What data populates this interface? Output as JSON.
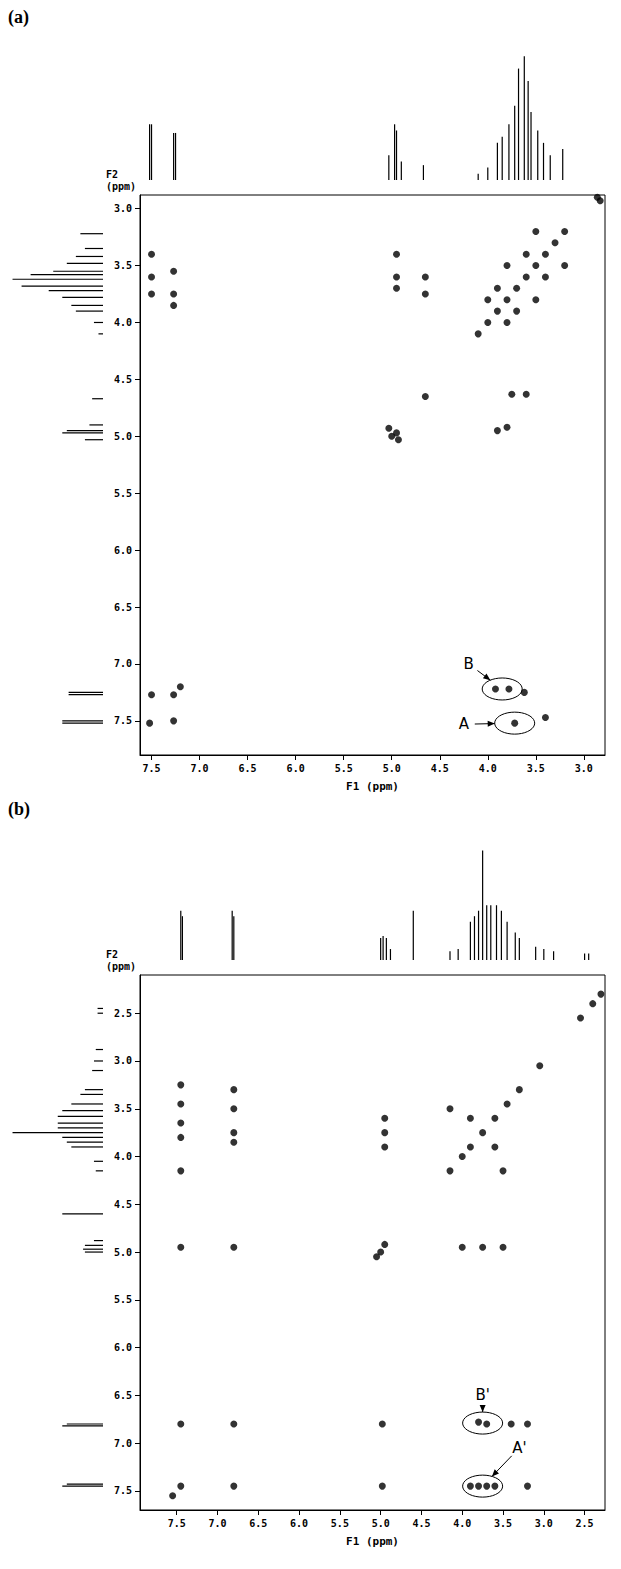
{
  "chart_data": [
    {
      "type": "scatter",
      "title": "(a)",
      "x_label": "F1 (ppm)",
      "y_label": "F2 (ppm)",
      "xlim": [
        7.62,
        2.78
      ],
      "ylim": [
        7.8,
        2.88
      ],
      "xticks": [
        7.5,
        {
          "value": 7,
          "label": "7.0"
        },
        6.5,
        {
          "value": 6,
          "label": "6.0"
        },
        5.5,
        {
          "value": 5,
          "label": "5.0"
        },
        4.5,
        {
          "value": 4,
          "label": "4.0"
        },
        3.5,
        {
          "value": 3,
          "label": "3.0"
        }
      ],
      "yticks": [
        {
          "value": 3,
          "label": "3.0"
        },
        3.5,
        {
          "value": 4,
          "label": "4.0"
        },
        4.5,
        {
          "value": 5,
          "label": "5.0"
        },
        5.5,
        {
          "value": 6,
          "label": "6.0"
        },
        6.5,
        {
          "value": 7,
          "label": "7.0"
        },
        7.5
      ],
      "grid": false,
      "color": "#000000",
      "marker": "circle",
      "x": [
        4.1,
        4.0,
        3.9,
        3.8,
        3.7,
        3.6,
        3.5,
        3.4,
        3.3,
        3.2,
        3.9,
        3.7,
        3.8,
        3.5,
        3.6,
        3.4,
        4.0,
        3.8,
        3.5,
        3.2,
        7.52,
        7.27,
        7.5,
        7.27,
        7.2,
        5.0,
        4.95,
        5.03,
        4.93,
        4.65,
        4.95,
        4.95,
        4.95,
        4.65,
        4.65,
        3.6,
        3.75,
        3.8,
        3.9,
        7.5,
        7.5,
        7.5,
        7.27,
        7.27,
        7.27,
        3.72,
        3.92,
        3.78,
        3.62,
        3.4,
        2.83,
        2.86
      ],
      "values": [
        4.1,
        4.0,
        3.9,
        3.8,
        3.7,
        3.6,
        3.5,
        3.4,
        3.3,
        3.2,
        3.7,
        3.9,
        3.5,
        3.8,
        3.4,
        3.6,
        3.8,
        4.0,
        3.2,
        3.5,
        7.52,
        7.27,
        7.27,
        7.5,
        7.2,
        5.0,
        4.97,
        4.93,
        5.03,
        4.65,
        3.4,
        3.6,
        3.7,
        3.6,
        3.75,
        4.63,
        4.63,
        4.92,
        4.95,
        3.4,
        3.6,
        3.75,
        3.55,
        3.75,
        3.85,
        7.52,
        7.22,
        7.22,
        7.25,
        7.47,
        2.93,
        2.9
      ],
      "projection": {
        "x": [
          7.52,
          7.5,
          7.27,
          7.25,
          5.03,
          4.97,
          4.95,
          4.9,
          4.67,
          4.1,
          4.0,
          3.9,
          3.85,
          3.78,
          3.72,
          3.68,
          3.62,
          3.58,
          3.55,
          3.48,
          3.42,
          3.35,
          3.22
        ],
        "values": [
          0.45,
          0.45,
          0.38,
          0.38,
          0.2,
          0.45,
          0.4,
          0.15,
          0.12,
          0.05,
          0.1,
          0.3,
          0.35,
          0.45,
          0.6,
          0.9,
          1.0,
          0.8,
          0.55,
          0.4,
          0.3,
          0.2,
          0.25
        ]
      },
      "annotations": [
        {
          "text": "B",
          "x": 4.2,
          "y": 7.0,
          "target": [
            3.85,
            7.22
          ]
        },
        {
          "text": "A",
          "x": 4.25,
          "y": 7.53,
          "target": [
            3.72,
            7.52
          ]
        }
      ]
    },
    {
      "type": "scatter",
      "title": "(b)",
      "x_label": "F1 (ppm)",
      "y_label": "F2 (ppm)",
      "xlim": [
        7.95,
        2.25
      ],
      "ylim": [
        7.7,
        2.1
      ],
      "xticks": [
        7.5,
        {
          "value": 7,
          "label": "7.0"
        },
        6.5,
        {
          "value": 6,
          "label": "6.0"
        },
        5.5,
        {
          "value": 5,
          "label": "5.0"
        },
        4.5,
        {
          "value": 4,
          "label": "4.0"
        },
        3.5,
        {
          "value": 3,
          "label": "3.0"
        },
        2.5
      ],
      "yticks": [
        2.5,
        {
          "value": 3,
          "label": "3.0"
        },
        3.5,
        {
          "value": 4,
          "label": "4.0"
        },
        4.5,
        {
          "value": 5,
          "label": "5.0"
        },
        5.5,
        {
          "value": 6,
          "label": "6.0"
        },
        6.5,
        {
          "value": 7,
          "label": "7.0"
        },
        7.5
      ],
      "grid": false,
      "color": "#000000",
      "marker": "circle",
      "x": [
        4.15,
        4.0,
        3.9,
        3.75,
        3.6,
        3.45,
        3.3,
        3.05,
        2.55,
        2.3,
        2.4,
        3.9,
        3.6,
        4.15,
        3.5,
        7.45,
        6.8,
        7.45,
        6.8,
        7.55,
        5.0,
        4.95,
        5.05,
        4.95,
        4.95,
        4.95,
        3.5,
        3.75,
        4.0,
        7.45,
        7.45,
        7.45,
        7.45,
        7.45,
        7.45,
        6.8,
        6.8,
        6.8,
        6.8,
        6.8,
        4.98,
        3.9,
        3.8,
        3.7,
        3.6,
        3.2,
        4.98,
        3.8,
        3.7,
        3.4,
        3.2
      ],
      "values": [
        4.15,
        4.0,
        3.9,
        3.75,
        3.6,
        3.45,
        3.3,
        3.05,
        2.55,
        2.3,
        2.4,
        3.6,
        3.9,
        3.5,
        4.15,
        7.45,
        6.8,
        6.8,
        7.45,
        7.55,
        5.0,
        4.92,
        5.05,
        3.6,
        3.75,
        3.9,
        4.95,
        4.95,
        4.95,
        3.25,
        3.45,
        3.65,
        3.8,
        4.15,
        4.95,
        3.3,
        3.5,
        3.75,
        3.85,
        4.95,
        7.45,
        7.45,
        7.45,
        7.45,
        7.45,
        7.45,
        6.8,
        6.78,
        6.8,
        6.8,
        6.8
      ],
      "projection": {
        "x": [
          7.45,
          7.43,
          6.82,
          6.8,
          5.0,
          4.97,
          4.93,
          4.88,
          4.6,
          4.15,
          4.05,
          3.9,
          3.85,
          3.8,
          3.75,
          3.7,
          3.65,
          3.58,
          3.52,
          3.45,
          3.35,
          3.3,
          3.1,
          3.0,
          2.88,
          2.5,
          2.45
        ],
        "values": [
          0.45,
          0.4,
          0.45,
          0.4,
          0.2,
          0.22,
          0.2,
          0.1,
          0.45,
          0.08,
          0.1,
          0.35,
          0.4,
          0.45,
          1.0,
          0.5,
          0.5,
          0.5,
          0.45,
          0.35,
          0.25,
          0.2,
          0.12,
          0.1,
          0.08,
          0.06,
          0.06
        ]
      },
      "annotations": [
        {
          "text": "B'",
          "x": 3.75,
          "y": 6.5,
          "target": [
            3.75,
            6.79
          ]
        },
        {
          "text": "A'",
          "x": 3.3,
          "y": 7.05,
          "target": [
            3.75,
            7.45
          ]
        }
      ]
    }
  ]
}
